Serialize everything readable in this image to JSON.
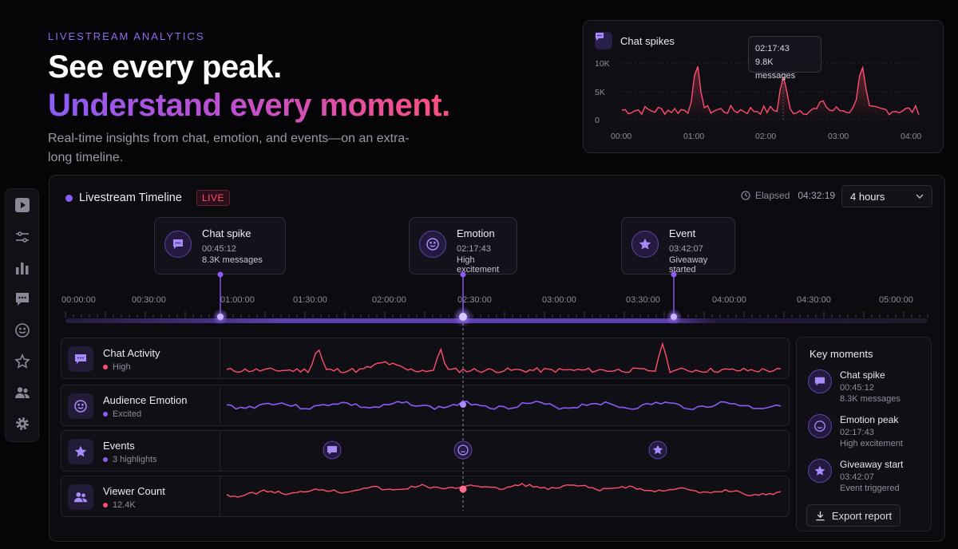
{
  "hero": {
    "eyebrow": "LIVESTREAM ANALYTICS",
    "title_line1": "See every peak.",
    "title_line2": "Understand every moment.",
    "subtitle": "Real-time insights from chat, emotion, and events—on an extra-long timeline."
  },
  "spikes_card": {
    "title": "Chat spikes",
    "tooltip_time": "02:17:43",
    "tooltip_value": "9.8K messages",
    "y_ticks": [
      "10K",
      "5K",
      "0"
    ],
    "x_ticks": [
      "00:00",
      "01:00",
      "02:00",
      "03:00",
      "04:00"
    ]
  },
  "sidebar": {
    "items": [
      "play-icon",
      "sliders-icon",
      "bar-chart-icon",
      "chat-icon",
      "smile-icon",
      "star-icon",
      "users-icon",
      "gear-icon"
    ]
  },
  "timeline": {
    "title": "Livestream Timeline",
    "live_badge": "LIVE",
    "elapsed_label": "Elapsed",
    "elapsed_value": "04:32:19",
    "range_select": "4 hours",
    "ruler_labels": [
      "00:00:00",
      "00:30:00",
      "01:00:00",
      "01:30:00",
      "02:00:00",
      "02:30:00",
      "03:00:00",
      "03:30:00",
      "04:00:00",
      "04:30:00",
      "05:00:00"
    ],
    "markers": [
      {
        "title": "Chat spike",
        "time": "00:45:12",
        "desc": "8.3K messages",
        "icon": "chat-icon"
      },
      {
        "title": "Emotion",
        "time": "02:17:43",
        "desc": "High excitement",
        "icon": "smile-icon"
      },
      {
        "title": "Event",
        "time": "03:42:07",
        "desc": "Giveaway started",
        "icon": "star-icon"
      }
    ],
    "rows": [
      {
        "label": "Chat Activity",
        "status": "High",
        "status_color": "#ff4d6d",
        "icon": "chat-icon"
      },
      {
        "label": "Audience Emotion",
        "status": "Excited",
        "status_color": "#8b5cf6",
        "icon": "smile-icon"
      },
      {
        "label": "Events",
        "status": "3 highlights",
        "status_color": "#8b5cf6",
        "icon": "star-icon"
      },
      {
        "label": "Viewer Count",
        "status": "12.4K",
        "status_color": "#ff4d6d",
        "icon": "users-icon"
      }
    ]
  },
  "key_moments": {
    "title": "Key moments",
    "items": [
      {
        "title": "Chat spike",
        "time": "00:45:12",
        "desc": "8.3K messages",
        "icon": "chat-icon"
      },
      {
        "title": "Emotion peak",
        "time": "02:17:43",
        "desc": "High excitement",
        "icon": "smile-icon"
      },
      {
        "title": "Giveaway start",
        "time": "03:42:07",
        "desc": "Event triggered",
        "icon": "star-icon"
      }
    ],
    "export_label": "Export report"
  },
  "colors": {
    "accent_purple": "#8b5cf6",
    "accent_pink": "#ff4d6d"
  }
}
